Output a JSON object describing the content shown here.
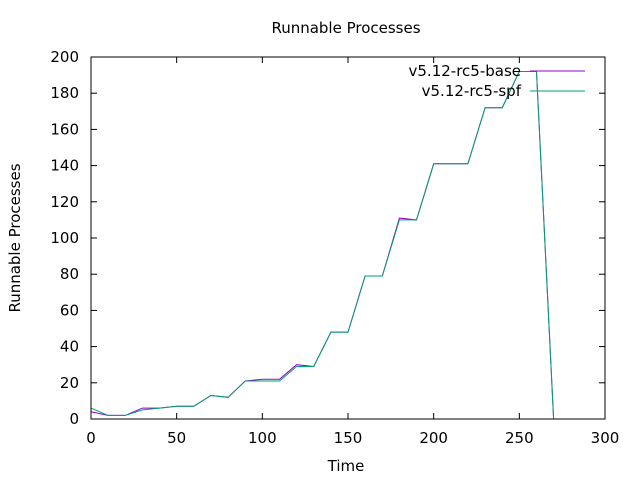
{
  "chart_data": {
    "type": "line",
    "title": "Runnable Processes",
    "xlabel": "Time",
    "ylabel": "Runnable Processes",
    "xlim": [
      0,
      300
    ],
    "ylim": [
      0,
      200
    ],
    "xticks": [
      0,
      50,
      100,
      150,
      200,
      250,
      300
    ],
    "yticks": [
      0,
      20,
      40,
      60,
      80,
      100,
      120,
      140,
      160,
      180,
      200
    ],
    "grid": false,
    "legend_position": "top-right",
    "x": [
      0,
      10,
      20,
      30,
      40,
      50,
      60,
      70,
      80,
      90,
      100,
      110,
      120,
      130,
      140,
      150,
      160,
      170,
      180,
      190,
      200,
      210,
      220,
      230,
      240,
      250,
      260,
      270
    ],
    "series": [
      {
        "name": "v5.12-rc5-base",
        "color": "#9400d3",
        "values": [
          4,
          2,
          2,
          6,
          6,
          7,
          7,
          13,
          12,
          21,
          22,
          22,
          30,
          29,
          48,
          48,
          79,
          79,
          111,
          110,
          141,
          141,
          141,
          172,
          172,
          192,
          192,
          0
        ]
      },
      {
        "name": "v5.12-rc5-spf",
        "color": "#009e73",
        "values": [
          6,
          2,
          2,
          5,
          6,
          7,
          7,
          13,
          12,
          21,
          21,
          21,
          29,
          29,
          48,
          48,
          79,
          79,
          110,
          110,
          141,
          141,
          141,
          172,
          172,
          192,
          192,
          0
        ]
      }
    ]
  }
}
